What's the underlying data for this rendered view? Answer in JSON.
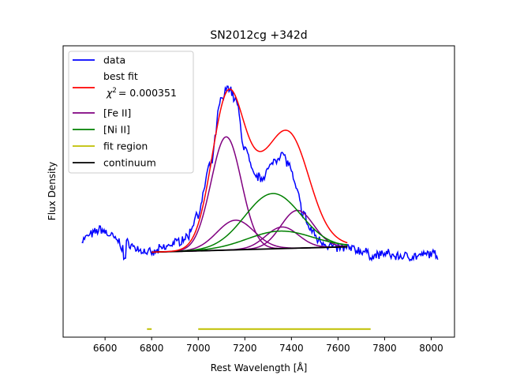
{
  "chart_data": {
    "type": "line",
    "title": "SN2012cg  +342d",
    "xlabel": "Rest Wavelength [Å]",
    "ylabel": "Flux Density",
    "xlim": [
      6420,
      8100
    ],
    "ylim": [
      -0.08,
      1.0
    ],
    "xticks": [
      6600,
      6800,
      7000,
      7200,
      7400,
      7600,
      7800,
      8000
    ],
    "grid": false,
    "legend": {
      "placement": "upper-left",
      "entries": [
        {
          "label": "data",
          "color": "#0000ff"
        },
        {
          "label_line1": "best fit",
          "label_chi_prefix": "χ",
          "label_chi_sup": "2",
          "label_chi_value": "=  0.000351",
          "color": "#ff0000"
        },
        {
          "label": "[Fe II]",
          "color": "#800080"
        },
        {
          "label": "[Ni II]",
          "color": "#008000"
        },
        {
          "label": "fit region",
          "color": "#bfbf00"
        },
        {
          "label": "continuum",
          "color": "#000000"
        }
      ]
    },
    "continuum": {
      "x": [
        6800,
        7640
      ],
      "y": [
        0.235,
        0.255
      ]
    },
    "fe_components": [
      {
        "center": 7120,
        "sigma": 65,
        "amp": 0.42
      },
      {
        "center": 7160,
        "sigma": 80,
        "amp": 0.11
      },
      {
        "center": 7360,
        "sigma": 70,
        "amp": 0.08
      },
      {
        "center": 7425,
        "sigma": 70,
        "amp": 0.14
      }
    ],
    "ni_components": [
      {
        "center": 7320,
        "sigma": 120,
        "amp": 0.205
      },
      {
        "center": 7350,
        "sigma": 140,
        "amp": 0.065
      }
    ],
    "fit_region": [
      [
        6780,
        6800
      ],
      [
        7000,
        7740
      ]
    ],
    "fit_region_y": -0.05,
    "data_knots": {
      "x": [
        6500,
        6540,
        6580,
        6620,
        6650,
        6680,
        6700,
        6730,
        6760,
        6800,
        6850,
        6900,
        6950,
        7000,
        7050,
        7100,
        7130,
        7160,
        7200,
        7240,
        7270,
        7300,
        7330,
        7360,
        7390,
        7420,
        7450,
        7480,
        7520,
        7560,
        7600,
        7640,
        7700,
        7750,
        7800,
        7850,
        7900,
        7950,
        8000,
        8030
      ],
      "y": [
        0.28,
        0.3,
        0.32,
        0.3,
        0.28,
        0.25,
        0.27,
        0.25,
        0.24,
        0.23,
        0.25,
        0.27,
        0.29,
        0.38,
        0.55,
        0.8,
        0.85,
        0.8,
        0.62,
        0.52,
        0.51,
        0.54,
        0.58,
        0.6,
        0.56,
        0.47,
        0.38,
        0.32,
        0.28,
        0.26,
        0.25,
        0.25,
        0.24,
        0.22,
        0.23,
        0.22,
        0.22,
        0.22,
        0.23,
        0.22
      ]
    }
  }
}
